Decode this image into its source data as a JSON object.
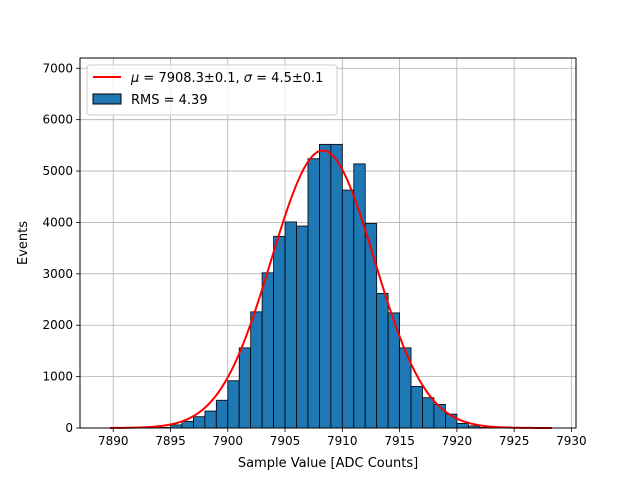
{
  "chart_data": {
    "type": "bar",
    "xlabel": "Sample Value [ADC Counts]",
    "ylabel": "Events",
    "xlim": [
      7887.1,
      7930.4
    ],
    "ylim": [
      0,
      7200
    ],
    "xticks": [
      7890,
      7895,
      7900,
      7905,
      7910,
      7915,
      7920,
      7925,
      7930
    ],
    "yticks": [
      0,
      1000,
      2000,
      3000,
      4000,
      5000,
      6000,
      7000
    ],
    "grid": true,
    "legend_position": "top-left",
    "bin_width": 1,
    "bins": [
      {
        "x": 7894,
        "y": 10
      },
      {
        "x": 7895,
        "y": 60
      },
      {
        "x": 7896,
        "y": 130
      },
      {
        "x": 7897,
        "y": 220
      },
      {
        "x": 7898,
        "y": 330
      },
      {
        "x": 7899,
        "y": 540
      },
      {
        "x": 7900,
        "y": 920
      },
      {
        "x": 7901,
        "y": 1560
      },
      {
        "x": 7902,
        "y": 2260
      },
      {
        "x": 7903,
        "y": 3020
      },
      {
        "x": 7904,
        "y": 3730
      },
      {
        "x": 7905,
        "y": 4010
      },
      {
        "x": 7906,
        "y": 3930
      },
      {
        "x": 7907,
        "y": 5240
      },
      {
        "x": 7908,
        "y": 5520
      },
      {
        "x": 7909,
        "y": 5520
      },
      {
        "x": 7910,
        "y": 4630
      },
      {
        "x": 7911,
        "y": 5140
      },
      {
        "x": 7912,
        "y": 3980
      },
      {
        "x": 7913,
        "y": 2620
      },
      {
        "x": 7914,
        "y": 2240
      },
      {
        "x": 7915,
        "y": 1560
      },
      {
        "x": 7916,
        "y": 810
      },
      {
        "x": 7917,
        "y": 590
      },
      {
        "x": 7918,
        "y": 460
      },
      {
        "x": 7919,
        "y": 270
      },
      {
        "x": 7920,
        "y": 90
      },
      {
        "x": 7921,
        "y": 40
      },
      {
        "x": 7922,
        "y": 10
      }
    ],
    "fit": {
      "mu": 7908.3,
      "sigma": 4.5,
      "amplitude": 5400,
      "x_range": [
        7889.7,
        7928.3
      ]
    },
    "series": [
      {
        "name": "$\\mu = 7908.3 \\pm 0.1$, $\\sigma = 4.5 \\pm 0.1$",
        "kind": "line",
        "color": "#ff0000"
      },
      {
        "name": "RMS = 4.39",
        "kind": "bar",
        "color": "#1f77b4"
      }
    ]
  },
  "legend": {
    "fit_mu_symbol": "μ",
    "fit_mu_text": " = 7908.3±0.1, ",
    "fit_sigma_symbol": "σ",
    "fit_sigma_text": " = 4.5±0.1",
    "rms_text": "RMS = 4.39"
  }
}
